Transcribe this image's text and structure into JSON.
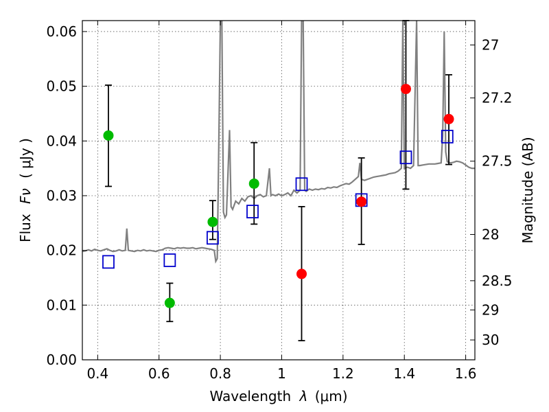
{
  "chart_data": {
    "type": "scatter",
    "x_axis": {
      "label_text": "Wavelength",
      "label_symbol": "λ",
      "label_unit": "(μm)",
      "lim": [
        0.35,
        1.63
      ],
      "ticks": [
        0.4,
        0.6,
        0.8,
        1.0,
        1.2,
        1.4,
        1.6
      ],
      "tick_labels": [
        "0.4",
        "0.6",
        "0.8",
        "1",
        "1.2",
        "1.4",
        "1.6"
      ]
    },
    "y_axis": {
      "label_text": "Flux",
      "label_symbol": "Fν",
      "label_unit": "( μJy )",
      "lim": [
        0.0,
        0.062
      ],
      "ticks": [
        0.0,
        0.01,
        0.02,
        0.03,
        0.04,
        0.05,
        0.06
      ],
      "tick_labels": [
        "0.00",
        "0.01",
        "0.02",
        "0.03",
        "0.04",
        "0.05",
        "0.06"
      ]
    },
    "y2_axis": {
      "label": "Magnitude (AB)",
      "ticks": [
        27,
        27.2,
        27.5,
        28,
        28.5,
        29,
        30
      ],
      "tick_labels": [
        "27",
        "27.2",
        "27.5",
        "28",
        "28.5",
        "29",
        "30"
      ]
    },
    "grid": true,
    "grid_style": "dotted",
    "colors": {
      "spectrum": "#808080",
      "optical_points": "#00bb00",
      "nir_points": "#ff0000",
      "model_boxes": "#0000cc",
      "errorbars": "#000000"
    },
    "series": [
      {
        "kind": "line",
        "points": [
          [
            0.35,
            0.0198
          ],
          [
            0.36,
            0.0199
          ],
          [
            0.37,
            0.0201
          ],
          [
            0.38,
            0.0199
          ],
          [
            0.39,
            0.0202
          ],
          [
            0.4,
            0.02
          ],
          [
            0.41,
            0.0199
          ],
          [
            0.42,
            0.0201
          ],
          [
            0.43,
            0.0203
          ],
          [
            0.44,
            0.02
          ],
          [
            0.45,
            0.0198
          ],
          [
            0.46,
            0.0199
          ],
          [
            0.47,
            0.0201
          ],
          [
            0.48,
            0.0199
          ],
          [
            0.49,
            0.02
          ],
          [
            0.495,
            0.024
          ],
          [
            0.5,
            0.02
          ],
          [
            0.51,
            0.0199
          ],
          [
            0.52,
            0.0198
          ],
          [
            0.53,
            0.02
          ],
          [
            0.54,
            0.0199
          ],
          [
            0.55,
            0.0201
          ],
          [
            0.56,
            0.0199
          ],
          [
            0.57,
            0.02
          ],
          [
            0.58,
            0.0199
          ],
          [
            0.59,
            0.0198
          ],
          [
            0.6,
            0.02
          ],
          [
            0.61,
            0.0201
          ],
          [
            0.62,
            0.0204
          ],
          [
            0.63,
            0.0205
          ],
          [
            0.64,
            0.0204
          ],
          [
            0.65,
            0.0203
          ],
          [
            0.66,
            0.0205
          ],
          [
            0.67,
            0.0204
          ],
          [
            0.68,
            0.0205
          ],
          [
            0.69,
            0.0204
          ],
          [
            0.7,
            0.0204
          ],
          [
            0.71,
            0.0205
          ],
          [
            0.72,
            0.0203
          ],
          [
            0.73,
            0.0204
          ],
          [
            0.74,
            0.0205
          ],
          [
            0.75,
            0.0204
          ],
          [
            0.76,
            0.0203
          ],
          [
            0.77,
            0.0202
          ],
          [
            0.78,
            0.02
          ],
          [
            0.785,
            0.018
          ],
          [
            0.79,
            0.0185
          ],
          [
            0.795,
            0.04
          ],
          [
            0.8,
            0.062
          ],
          [
            0.805,
            0.062
          ],
          [
            0.81,
            0.027
          ],
          [
            0.815,
            0.026
          ],
          [
            0.82,
            0.0265
          ],
          [
            0.83,
            0.042
          ],
          [
            0.835,
            0.028
          ],
          [
            0.84,
            0.0275
          ],
          [
            0.85,
            0.029
          ],
          [
            0.86,
            0.0285
          ],
          [
            0.87,
            0.0295
          ],
          [
            0.88,
            0.029
          ],
          [
            0.89,
            0.0298
          ],
          [
            0.9,
            0.03
          ],
          [
            0.91,
            0.0295
          ],
          [
            0.92,
            0.03
          ],
          [
            0.93,
            0.0302
          ],
          [
            0.94,
            0.0298
          ],
          [
            0.95,
            0.03
          ],
          [
            0.96,
            0.035
          ],
          [
            0.965,
            0.03
          ],
          [
            0.97,
            0.0302
          ],
          [
            0.98,
            0.03
          ],
          [
            0.99,
            0.0303
          ],
          [
            1.0,
            0.03
          ],
          [
            1.01,
            0.0302
          ],
          [
            1.02,
            0.0305
          ],
          [
            1.03,
            0.03
          ],
          [
            1.04,
            0.031
          ],
          [
            1.05,
            0.0305
          ],
          [
            1.06,
            0.031
          ],
          [
            1.065,
            0.062
          ],
          [
            1.07,
            0.062
          ],
          [
            1.075,
            0.031
          ],
          [
            1.08,
            0.0308
          ],
          [
            1.09,
            0.0312
          ],
          [
            1.1,
            0.031
          ],
          [
            1.11,
            0.0312
          ],
          [
            1.12,
            0.0311
          ],
          [
            1.13,
            0.0313
          ],
          [
            1.14,
            0.0312
          ],
          [
            1.15,
            0.0315
          ],
          [
            1.16,
            0.0314
          ],
          [
            1.17,
            0.0316
          ],
          [
            1.18,
            0.0315
          ],
          [
            1.19,
            0.0318
          ],
          [
            1.2,
            0.032
          ],
          [
            1.21,
            0.0322
          ],
          [
            1.22,
            0.0321
          ],
          [
            1.23,
            0.0325
          ],
          [
            1.24,
            0.033
          ],
          [
            1.25,
            0.0335
          ],
          [
            1.255,
            0.036
          ],
          [
            1.26,
            0.033
          ],
          [
            1.27,
            0.0328
          ],
          [
            1.28,
            0.033
          ],
          [
            1.29,
            0.0332
          ],
          [
            1.3,
            0.0334
          ],
          [
            1.31,
            0.0335
          ],
          [
            1.32,
            0.0336
          ],
          [
            1.33,
            0.0337
          ],
          [
            1.34,
            0.0338
          ],
          [
            1.35,
            0.034
          ],
          [
            1.36,
            0.0341
          ],
          [
            1.37,
            0.0342
          ],
          [
            1.38,
            0.0345
          ],
          [
            1.39,
            0.035
          ],
          [
            1.395,
            0.062
          ],
          [
            1.4,
            0.035
          ],
          [
            1.41,
            0.0352
          ],
          [
            1.42,
            0.035
          ],
          [
            1.43,
            0.0355
          ],
          [
            1.44,
            0.062
          ],
          [
            1.445,
            0.0355
          ],
          [
            1.45,
            0.0355
          ],
          [
            1.46,
            0.0356
          ],
          [
            1.47,
            0.0357
          ],
          [
            1.48,
            0.0358
          ],
          [
            1.49,
            0.0358
          ],
          [
            1.5,
            0.0358
          ],
          [
            1.51,
            0.0359
          ],
          [
            1.52,
            0.036
          ],
          [
            1.525,
            0.041
          ],
          [
            1.53,
            0.06
          ],
          [
            1.535,
            0.038
          ],
          [
            1.54,
            0.0362
          ],
          [
            1.55,
            0.036
          ],
          [
            1.56,
            0.0361
          ],
          [
            1.57,
            0.0363
          ],
          [
            1.58,
            0.0362
          ],
          [
            1.59,
            0.036
          ],
          [
            1.6,
            0.0356
          ],
          [
            1.61,
            0.0352
          ],
          [
            1.62,
            0.035
          ],
          [
            1.63,
            0.035
          ]
        ]
      },
      {
        "kind": "points_with_errorbars",
        "color_key": "optical_points",
        "points": [
          {
            "x": 0.435,
            "y": 0.041,
            "ylo": 0.0317,
            "yhi": 0.0502
          },
          {
            "x": 0.635,
            "y": 0.0104,
            "ylo": 0.007,
            "yhi": 0.014
          },
          {
            "x": 0.775,
            "y": 0.0252,
            "ylo": 0.022,
            "yhi": 0.0291
          },
          {
            "x": 0.91,
            "y": 0.0322,
            "ylo": 0.0248,
            "yhi": 0.0397
          }
        ]
      },
      {
        "kind": "points_with_errorbars",
        "color_key": "nir_points",
        "points": [
          {
            "x": 1.065,
            "y": 0.0157,
            "ylo": 0.0035,
            "yhi": 0.028
          },
          {
            "x": 1.26,
            "y": 0.0289,
            "ylo": 0.0211,
            "yhi": 0.0369
          },
          {
            "x": 1.405,
            "y": 0.0495,
            "ylo": 0.0312,
            "yhi": 0.062
          },
          {
            "x": 1.545,
            "y": 0.044,
            "ylo": 0.0357,
            "yhi": 0.0521
          }
        ]
      },
      {
        "kind": "open_squares",
        "color_key": "model_boxes",
        "points": [
          {
            "x": 0.435,
            "y": 0.0179
          },
          {
            "x": 0.635,
            "y": 0.0182
          },
          {
            "x": 0.775,
            "y": 0.0223
          },
          {
            "x": 0.905,
            "y": 0.0271
          },
          {
            "x": 1.065,
            "y": 0.0321
          },
          {
            "x": 1.26,
            "y": 0.0292
          },
          {
            "x": 1.405,
            "y": 0.037
          },
          {
            "x": 1.54,
            "y": 0.0408
          }
        ]
      }
    ]
  }
}
